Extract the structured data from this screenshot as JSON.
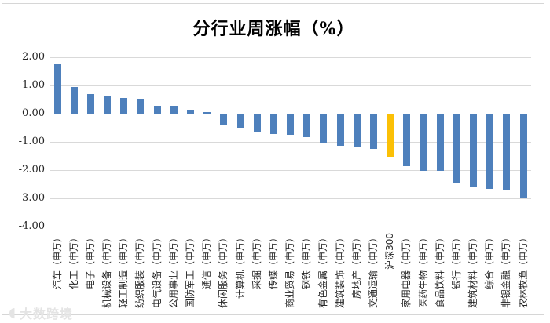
{
  "title": "分行业周涨幅（%）",
  "watermark": {
    "text": "大数跨境"
  },
  "chart_data": {
    "type": "bar",
    "title": "分行业周涨幅（%）",
    "categories": [
      "汽车（申万）",
      "化工（申万）",
      "电子（申万）",
      "机械设备（申万）",
      "轻工制造（申万）",
      "纺织服装（申万）",
      "电气设备（申万）",
      "公用事业（申万）",
      "国防军工（申万）",
      "通信（申万）",
      "休闲服务（申万）",
      "计算机（申万）",
      "采掘（申万）",
      "传媒（申万）",
      "商业贸易（申万）",
      "钢铁（申万）",
      "有色金属（申万）",
      "建筑装饰（申万）",
      "房地产（申万）",
      "交通运输（申万）",
      "沪深300",
      "家用电器（申万）",
      "医药生物（申万）",
      "食品饮料（申万）",
      "银行（申万）",
      "建筑材料（申万）",
      "综合（申万）",
      "非银金融（申万）",
      "农林牧渔（申万）"
    ],
    "values": [
      1.74,
      0.94,
      0.7,
      0.63,
      0.55,
      0.52,
      0.29,
      0.27,
      0.15,
      0.05,
      -0.37,
      -0.46,
      -0.62,
      -0.7,
      -0.72,
      -0.8,
      -1.02,
      -1.11,
      -1.14,
      -1.21,
      -1.49,
      -1.82,
      -1.98,
      -1.99,
      -2.45,
      -2.54,
      -2.64,
      -2.67,
      -2.95
    ],
    "xlabel": "",
    "ylabel": "",
    "ylim": [
      -4.0,
      2.0
    ],
    "ytick_labels": [
      "2.00",
      "1.00",
      "0.00",
      "-1.00",
      "-2.00",
      "-3.00",
      "-4.00"
    ],
    "ytick_values": [
      2,
      1,
      0,
      -1,
      -2,
      -3,
      -4
    ],
    "grid": true,
    "legend": false,
    "colors": {
      "bar": "#4e80bc",
      "highlight": "#fbc006"
    },
    "highlight_category": "沪深300"
  }
}
